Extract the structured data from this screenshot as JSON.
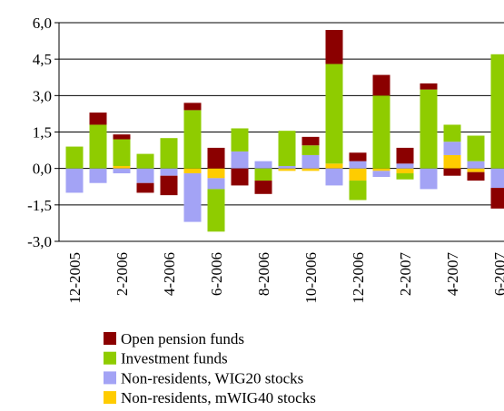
{
  "chart_data": {
    "type": "stacked_bar",
    "categories": [
      "12-2005",
      null,
      "2-2006",
      null,
      "4-2006",
      null,
      "6-2006",
      null,
      "8-2006",
      null,
      "10-2006",
      null,
      "12-2006",
      null,
      "2-2007",
      null,
      "4-2007",
      null,
      "6-2007"
    ],
    "series": [
      {
        "name": "Open pension funds",
        "color": "#8b0000",
        "values": [
          0,
          0.5,
          0.2,
          -0.4,
          -0.8,
          0.3,
          0.85,
          -0.7,
          -0.55,
          0,
          0.35,
          1.4,
          0.35,
          0.85,
          0.65,
          0.25,
          -0.3,
          -0.35,
          -0.85
        ]
      },
      {
        "name": "Investment funds",
        "color": "#8fcc00",
        "values": [
          0.9,
          1.8,
          1.1,
          0.6,
          1.25,
          2.4,
          -1.75,
          0.95,
          -0.5,
          1.45,
          0.4,
          4.1,
          -0.8,
          3.0,
          -0.25,
          3.25,
          0.7,
          1.05,
          4.7
        ]
      },
      {
        "name": "Non-residents, WIG20 stocks",
        "color": "#a3a3f5",
        "values": [
          -1.0,
          -0.6,
          -0.2,
          -0.6,
          -0.3,
          -2.0,
          -0.45,
          0.7,
          0.3,
          0.1,
          0.55,
          -0.7,
          0.3,
          -0.25,
          0.2,
          -0.85,
          0.55,
          0.3,
          -0.8
        ]
      },
      {
        "name": "Non-residents, mWIG40 stocks",
        "color": "#ffcc00",
        "values": [
          0,
          0,
          0.1,
          0,
          0,
          -0.2,
          -0.4,
          0,
          0,
          -0.1,
          -0.1,
          0.2,
          -0.5,
          -0.1,
          -0.2,
          0,
          0.55,
          -0.15,
          0
        ]
      }
    ],
    "ylim": [
      -3,
      6
    ],
    "yticks": [
      {
        "value": -3,
        "label": "-3,0"
      },
      {
        "value": -1.5,
        "label": "-1,5"
      },
      {
        "value": 0,
        "label": "0,0"
      },
      {
        "value": 1.5,
        "label": "1,5"
      },
      {
        "value": 3,
        "label": "3,0"
      },
      {
        "value": 4.5,
        "label": "4,5"
      },
      {
        "value": 6,
        "label": "6,0"
      }
    ],
    "grid": true
  }
}
